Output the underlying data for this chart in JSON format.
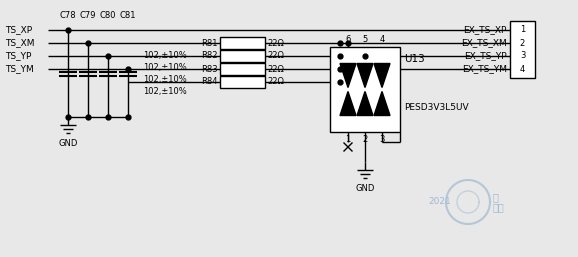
{
  "bg_color": "#e8e8e8",
  "line_color": "#000000",
  "line_width": 1.0,
  "font_size": 6.0,
  "signals_left": [
    "TS_XP",
    "TS_XM",
    "TS_YP",
    "TS_YM"
  ],
  "signals_right": [
    "EX_TS_XP",
    "EX_TS_XM",
    "EX_TS_YP",
    "EX_TS_YM"
  ],
  "resistors": [
    "R81",
    "R82",
    "R83",
    "R84"
  ],
  "resistor_values": [
    "22Ω",
    "22Ω",
    "22Ω",
    "22Ω"
  ],
  "capacitors": [
    "C78",
    "C79",
    "C80",
    "C81"
  ],
  "cap_values": [
    "102,±10%",
    "102,±10%",
    "102,±10%",
    "102,±10%"
  ],
  "u13_label": "U13",
  "u13_part": "PESD3V3L5UV",
  "connector_pins": [
    "1",
    "2",
    "3",
    "4"
  ],
  "diode_pin_top": [
    "6",
    "5",
    "4"
  ],
  "diode_pin_bot": [
    "1",
    "2",
    "3"
  ],
  "watermark_color": "#a0b8d0",
  "gnd_label": "GND"
}
